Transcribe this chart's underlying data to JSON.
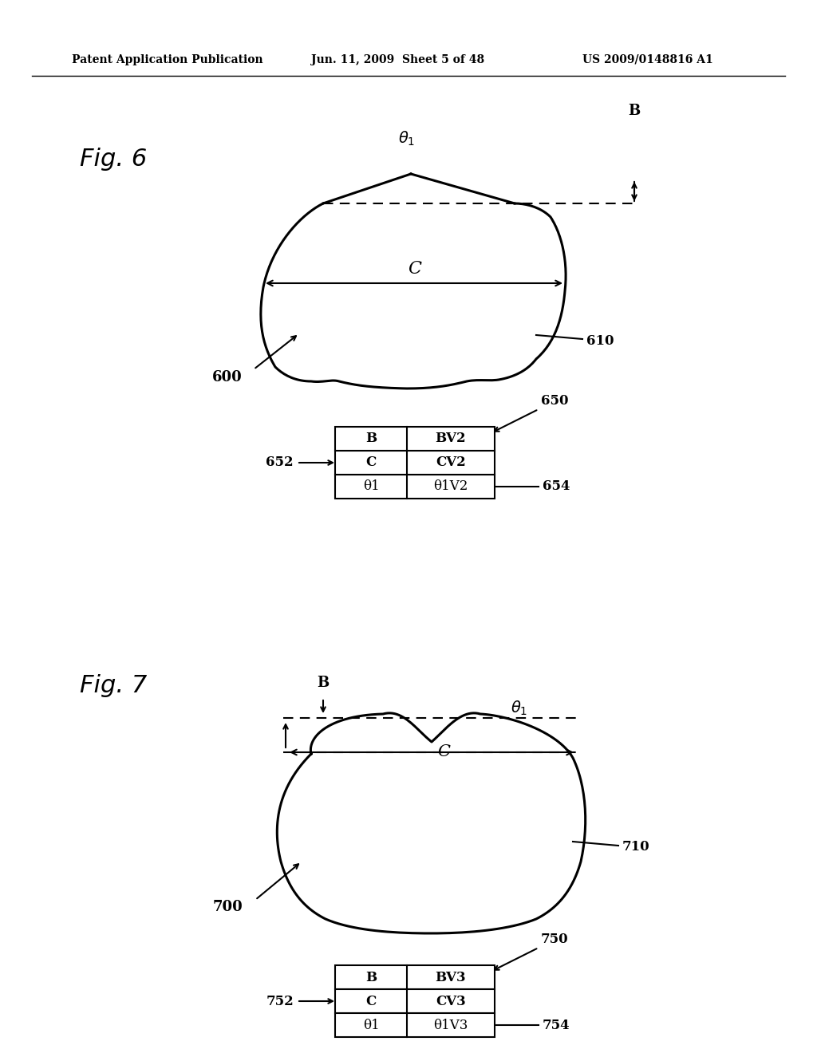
{
  "bg_color": "#ffffff",
  "header_left": "Patent Application Publication",
  "header_mid": "Jun. 11, 2009  Sheet 5 of 48",
  "header_right": "US 2009/0148816 A1",
  "fig6_label": "Fig. 6",
  "fig7_label": "Fig. 7",
  "fig6_ref": "600",
  "fig6_tooth_ref": "610",
  "fig6_table_ref": "650",
  "fig6_row_left_ref": "652",
  "fig6_row_right_ref": "654",
  "fig7_ref": "700",
  "fig7_tooth_ref": "710",
  "fig7_table_ref": "750",
  "fig7_row_left_ref": "752",
  "fig7_row_right_ref": "754",
  "table6_rows": [
    [
      "B",
      "BV2"
    ],
    [
      "C",
      "CV2"
    ],
    [
      "θ1",
      "θ1V2"
    ]
  ],
  "table7_rows": [
    [
      "B",
      "BV3"
    ],
    [
      "C",
      "CV3"
    ],
    [
      "θ1",
      "θ1V3"
    ]
  ]
}
